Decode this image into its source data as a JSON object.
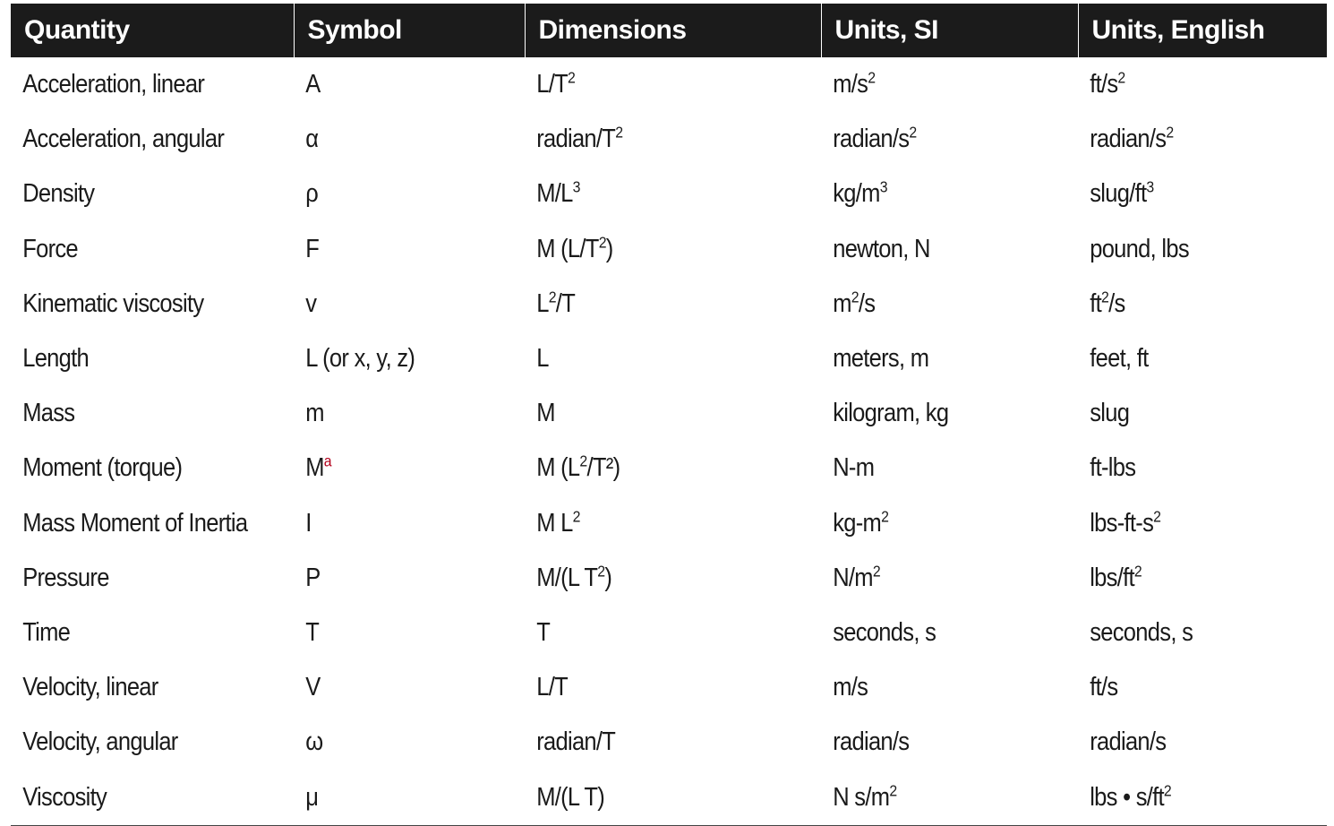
{
  "headers": [
    "Quantity",
    "Symbol",
    "Dimensions",
    "Units, SI",
    "Units, English"
  ],
  "footnote_color": "#b3001b",
  "rows": [
    {
      "quantity": "Acceleration, linear",
      "symbol": "A",
      "symbol_sup": "",
      "dim": "L/T",
      "dim_sup": "2",
      "dim_after": "",
      "si": "m/s",
      "si_sup": "2",
      "si_after": "",
      "en": "ft/s",
      "en_sup": "2",
      "en_after": ""
    },
    {
      "quantity": "Acceleration, angular",
      "symbol": "α",
      "symbol_sup": "",
      "dim": "radian/T",
      "dim_sup": "2",
      "dim_after": "",
      "si": "radian/s",
      "si_sup": "2",
      "si_after": "",
      "en": "radian/s",
      "en_sup": "2",
      "en_after": ""
    },
    {
      "quantity": "Density",
      "symbol": "ρ",
      "symbol_sup": "",
      "dim": "M/L",
      "dim_sup": "3",
      "dim_after": "",
      "si": "kg/m",
      "si_sup": "3",
      "si_after": "",
      "en": "slug/ft",
      "en_sup": "3",
      "en_after": ""
    },
    {
      "quantity": "Force",
      "symbol": "F",
      "symbol_sup": "",
      "dim": "M (L/T",
      "dim_sup": "2",
      "dim_after": ")",
      "si": "newton, N",
      "si_sup": "",
      "si_after": "",
      "en": "pound, lbs",
      "en_sup": "",
      "en_after": ""
    },
    {
      "quantity": "Kinematic viscosity",
      "symbol": "v",
      "symbol_sup": "",
      "dim": "L",
      "dim_sup": "2",
      "dim_after": "/T",
      "si": "m",
      "si_sup": "2",
      "si_after": "/s",
      "en": "ft",
      "en_sup": "2",
      "en_after": "/s"
    },
    {
      "quantity": "Length",
      "symbol": "L (or x, y, z)",
      "symbol_sup": "",
      "dim": "L",
      "dim_sup": "",
      "dim_after": "",
      "si": "meters, m",
      "si_sup": "",
      "si_after": "",
      "en": "feet, ft",
      "en_sup": "",
      "en_after": ""
    },
    {
      "quantity": "Mass",
      "symbol": "m",
      "symbol_sup": "",
      "dim": "M",
      "dim_sup": "",
      "dim_after": "",
      "si": "kilogram, kg",
      "si_sup": "",
      "si_after": "",
      "en": "slug",
      "en_sup": "",
      "en_after": ""
    },
    {
      "quantity": "Moment (torque)",
      "symbol": "M",
      "symbol_sup": "a",
      "dim": "M (L",
      "dim_sup": "2",
      "dim_after": "/T²)",
      "si": "N-m",
      "si_sup": "",
      "si_after": "",
      "en": "ft-lbs",
      "en_sup": "",
      "en_after": ""
    },
    {
      "quantity": "Mass Moment of Inertia",
      "symbol": "I",
      "symbol_sup": "",
      "dim": "M L",
      "dim_sup": "2",
      "dim_after": "",
      "si": "kg-m",
      "si_sup": "2",
      "si_after": "",
      "en": "lbs-ft-s",
      "en_sup": "2",
      "en_after": ""
    },
    {
      "quantity": "Pressure",
      "symbol": "P",
      "symbol_sup": "",
      "dim": "M/(L T",
      "dim_sup": "2",
      "dim_after": ")",
      "si": "N/m",
      "si_sup": "2",
      "si_after": "",
      "en": "lbs/ft",
      "en_sup": "2",
      "en_after": ""
    },
    {
      "quantity": "Time",
      "symbol": "T",
      "symbol_sup": "",
      "dim": "T",
      "dim_sup": "",
      "dim_after": "",
      "si": "seconds, s",
      "si_sup": "",
      "si_after": "",
      "en": "seconds, s",
      "en_sup": "",
      "en_after": ""
    },
    {
      "quantity": "Velocity, linear",
      "symbol": "V",
      "symbol_sup": "",
      "dim": "L/T",
      "dim_sup": "",
      "dim_after": "",
      "si": "m/s",
      "si_sup": "",
      "si_after": "",
      "en": "ft/s",
      "en_sup": "",
      "en_after": ""
    },
    {
      "quantity": "Velocity, angular",
      "symbol": "ω",
      "symbol_sup": "",
      "dim": "radian/T",
      "dim_sup": "",
      "dim_after": "",
      "si": "radian/s",
      "si_sup": "",
      "si_after": "",
      "en": "radian/s",
      "en_sup": "",
      "en_after": ""
    },
    {
      "quantity": "Viscosity",
      "symbol": "μ",
      "symbol_sup": "",
      "dim": "M/(L T)",
      "dim_sup": "",
      "dim_after": "",
      "si": "N s/m",
      "si_sup": "2",
      "si_after": "",
      "en": "lbs • s/ft",
      "en_sup": "2",
      "en_after": ""
    }
  ]
}
